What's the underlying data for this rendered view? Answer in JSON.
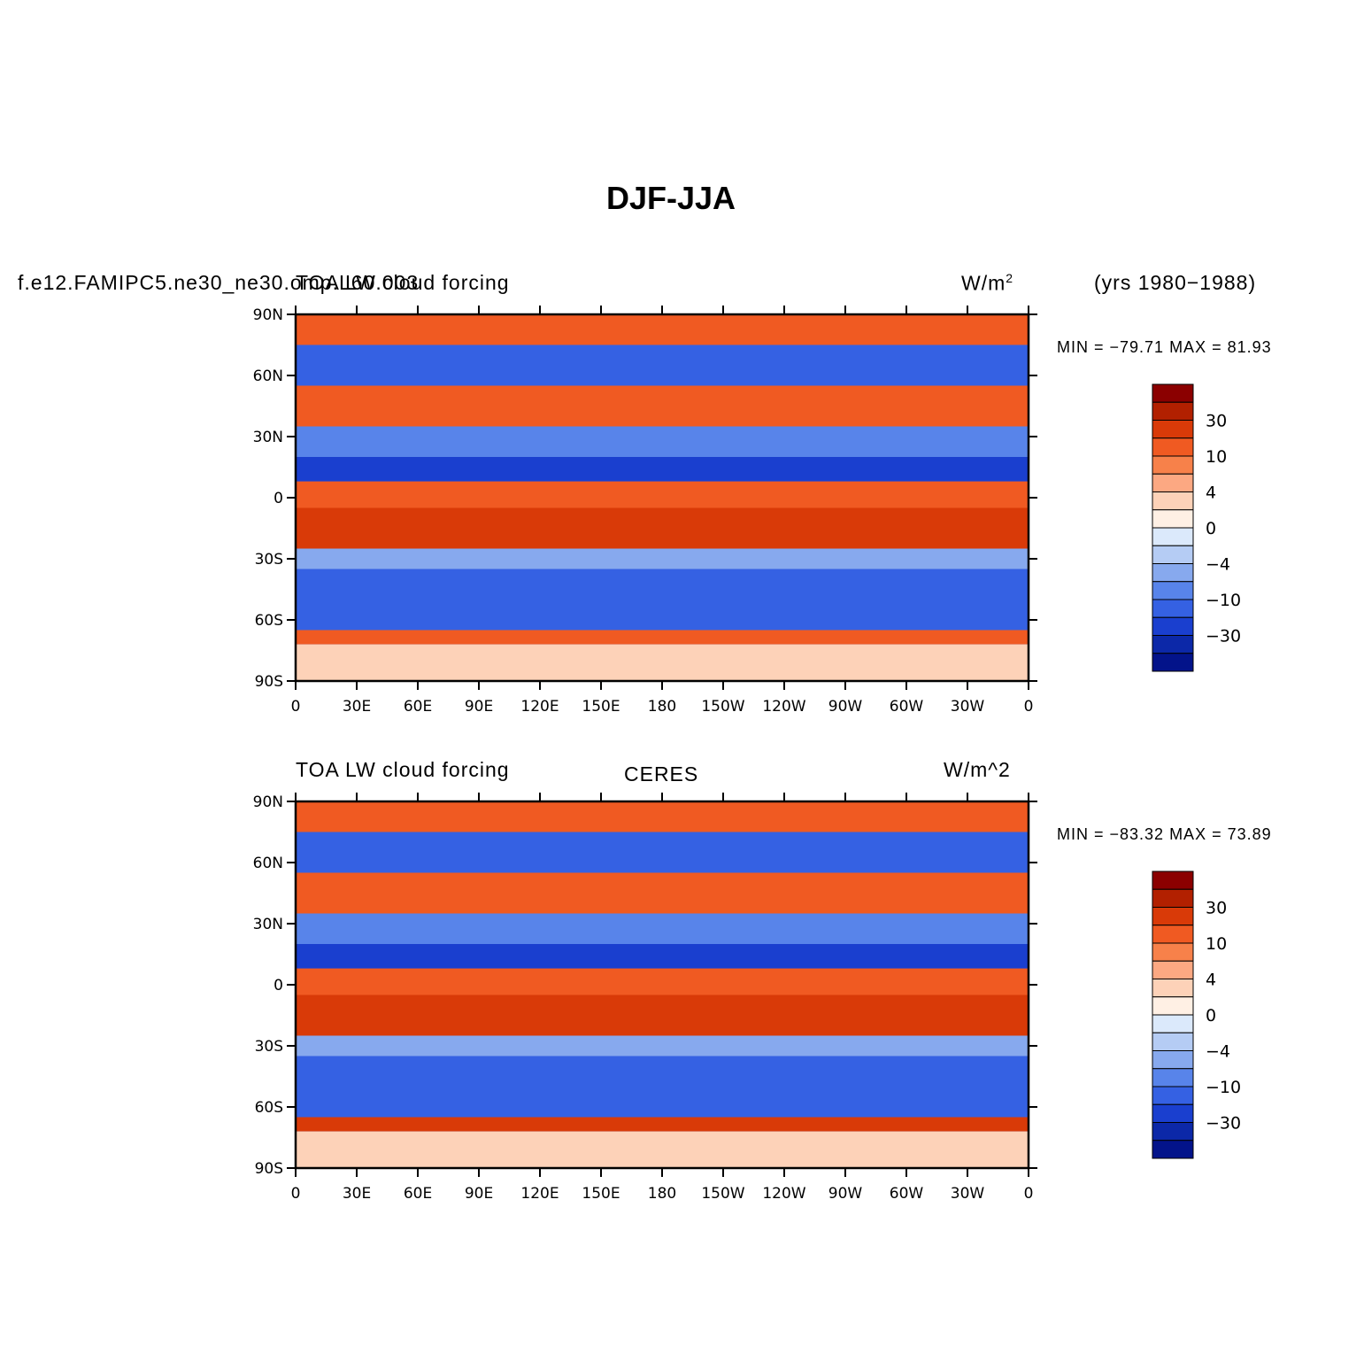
{
  "main_title": "DJF-JJA",
  "panels": [
    {
      "left_title": "f.e12.FAMIPC5.ne30_ne30.omp.L60.003",
      "left_title_overlay": "TOA LW cloud forcing",
      "center_title": "",
      "right_title": "W/m",
      "right_title_sup": "2",
      "extra_title": "(yrs 1980−1988)",
      "min_max": "MIN = −79.71  MAX =  81.93"
    },
    {
      "left_title": "TOA LW cloud forcing",
      "left_title_overlay": "",
      "center_title": "CERES",
      "right_title": "W/m^2",
      "right_title_sup": "",
      "extra_title": "",
      "min_max": "MIN = −83.32  MAX =  73.89"
    }
  ],
  "chart_data": {
    "type": "heatmap",
    "projection": "cylindrical equidistant map, 0 to 360 longitude",
    "x_ticks": [
      "0",
      "30E",
      "60E",
      "90E",
      "120E",
      "150E",
      "180",
      "150W",
      "120W",
      "90W",
      "60W",
      "30W",
      "0"
    ],
    "y_ticks": [
      "90N",
      "60N",
      "30N",
      "0",
      "30S",
      "60S",
      "90S"
    ],
    "xlim": [
      0,
      360
    ],
    "ylim": [
      -90,
      90
    ],
    "colorbar_labels": [
      "30",
      "10",
      "4",
      "0",
      "−4",
      "−10",
      "−30"
    ],
    "colorbar_colors": [
      "#8b0000",
      "#b22000",
      "#d93a08",
      "#f05a22",
      "#f7814a",
      "#fca882",
      "#fdd2b8",
      "#fff0e4",
      "#dbe9fb",
      "#b5ccf4",
      "#87a9ee",
      "#5884ea",
      "#3561e3",
      "#1a3fcf",
      "#0c28a8",
      "#03138a"
    ],
    "zonal_bands": [
      {
        "lat": [
          75,
          90
        ],
        "value": 12
      },
      {
        "lat": [
          55,
          75
        ],
        "value": -20
      },
      {
        "lat": [
          35,
          55
        ],
        "value": 15
      },
      {
        "lat": [
          20,
          35
        ],
        "value": -8
      },
      {
        "lat": [
          8,
          20
        ],
        "value": -30
      },
      {
        "lat": [
          -5,
          8
        ],
        "value": 12
      },
      {
        "lat": [
          -25,
          -5
        ],
        "value": 20
      },
      {
        "lat": [
          -35,
          -25
        ],
        "value": -5
      },
      {
        "lat": [
          -65,
          -35
        ],
        "value": -12
      },
      {
        "lat": [
          -72,
          -65
        ],
        "value": 15
      },
      {
        "lat": [
          -90,
          -72
        ],
        "value": 2
      }
    ]
  }
}
